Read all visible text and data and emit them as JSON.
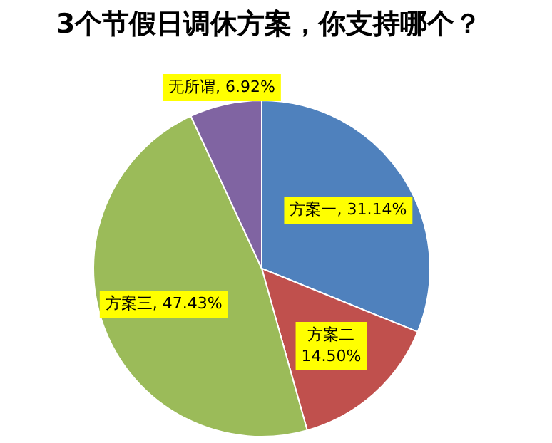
{
  "chart_data": {
    "type": "pie",
    "title": "3个节假日调休方案，你支持哪个？",
    "categories": [
      "方案一",
      "方案二",
      "方案三",
      "无所谓"
    ],
    "values": [
      31.14,
      14.5,
      47.43,
      6.92
    ],
    "value_labels": [
      "31.14%",
      "14.50%",
      "47.43%",
      "6.92%"
    ],
    "colors": [
      "#4f81bd",
      "#c0504d",
      "#9bbb59",
      "#8064a2"
    ],
    "legend": false
  }
}
